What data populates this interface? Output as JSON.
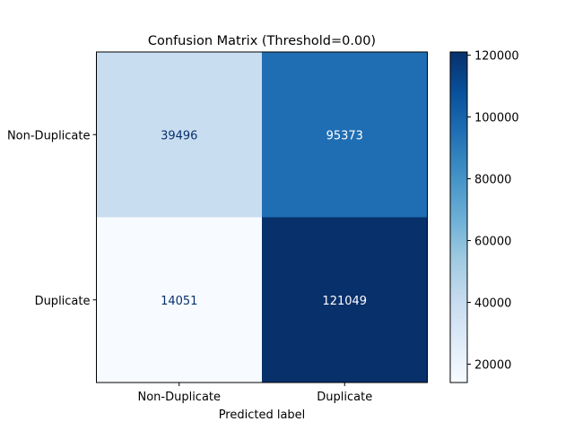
{
  "chart_data": {
    "type": "heatmap",
    "title": "Confusion Matrix (Threshold=0.00)",
    "xlabel": "Predicted label",
    "ylabel": "",
    "x_categories": [
      "Non-Duplicate",
      "Duplicate"
    ],
    "y_categories": [
      "Non-Duplicate",
      "Duplicate"
    ],
    "values": [
      [
        39496,
        95373
      ],
      [
        14051,
        121049
      ]
    ],
    "colormap": "Blues",
    "colorbar": {
      "min": 14051,
      "max": 121049,
      "ticks": [
        20000,
        40000,
        60000,
        80000,
        100000,
        120000
      ]
    }
  }
}
